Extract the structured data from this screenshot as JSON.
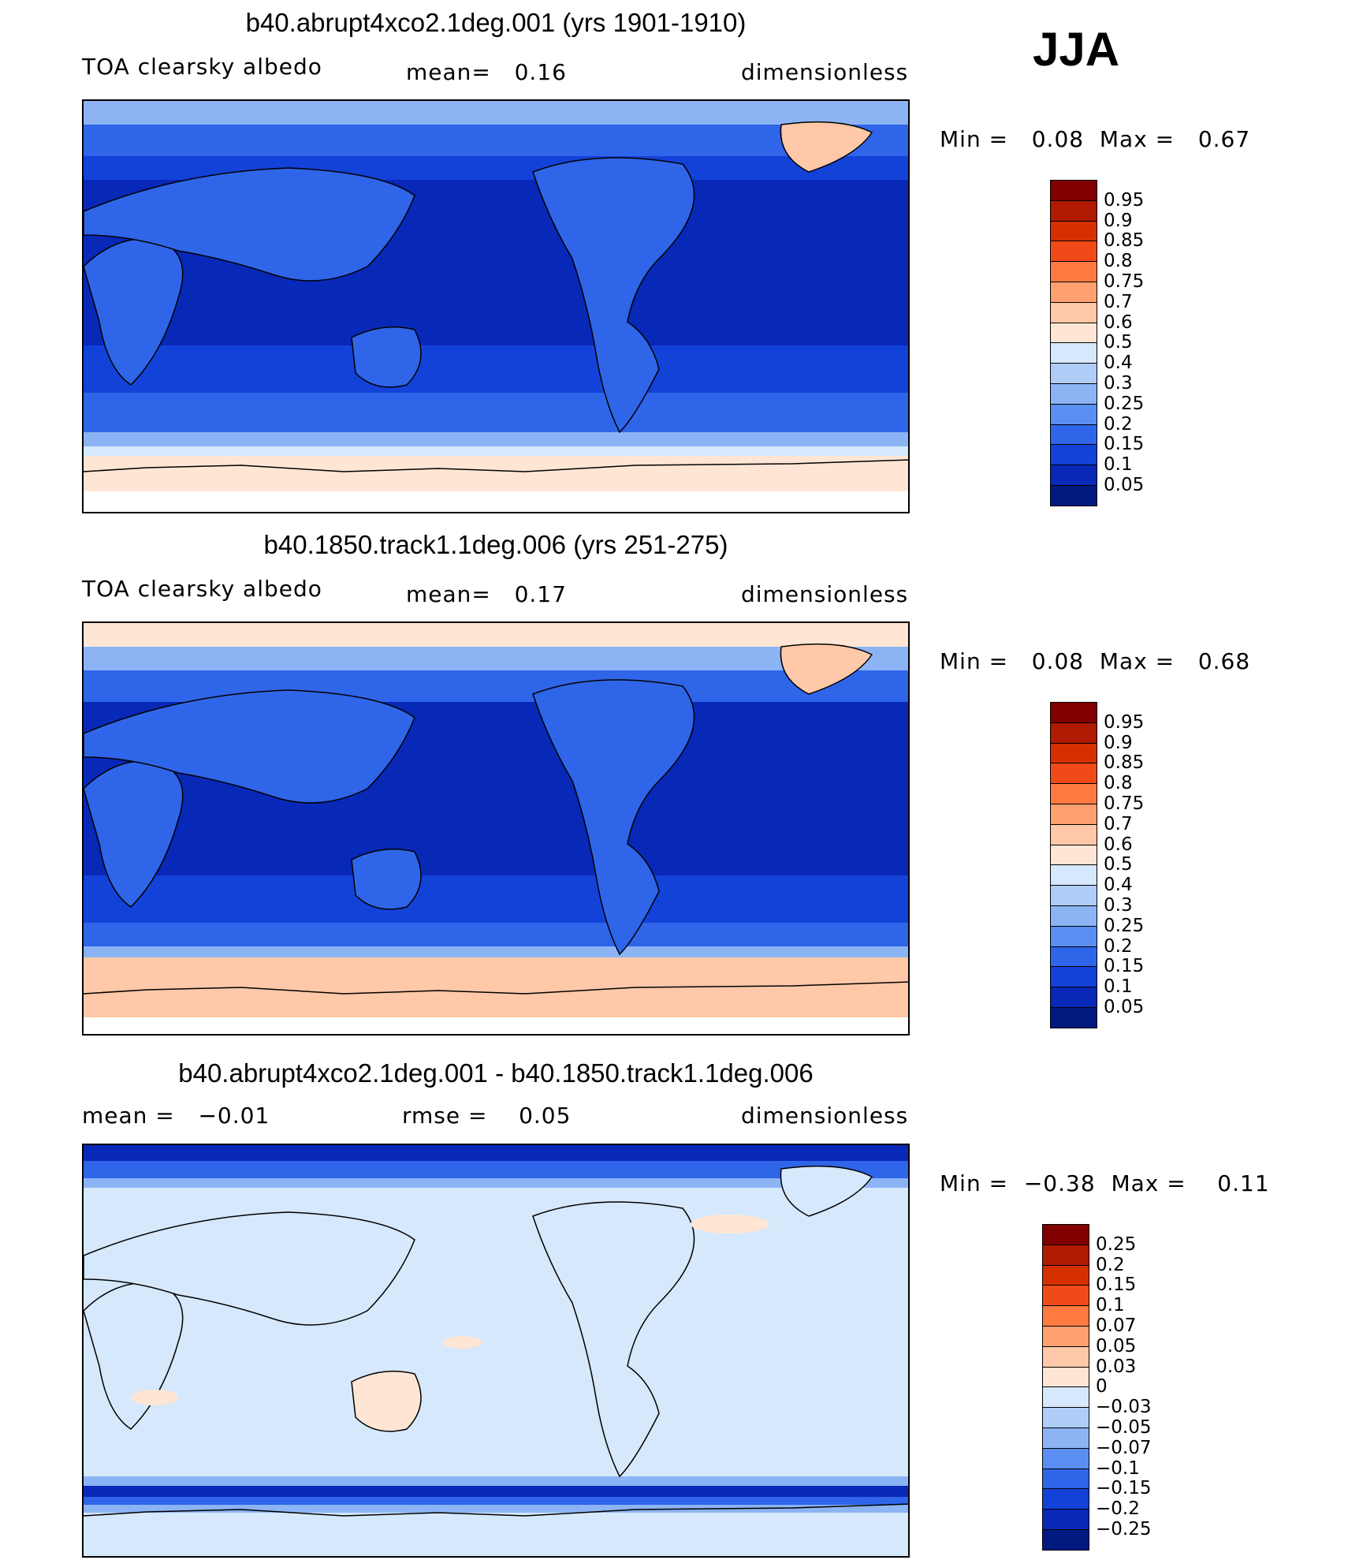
{
  "season": "JJA",
  "panels": [
    {
      "title": "b40.abrupt4xco2.1deg.001 (yrs 1901-1910)",
      "left_text": "TOA clearsky albedo",
      "mid_text": "mean=   0.16",
      "right_text": "dimensionless",
      "minmax": "Min =   0.08  Max =   0.67",
      "colorbar": {
        "labels": [
          "0.95",
          "0.9",
          "0.85",
          "0.8",
          "0.75",
          "0.7",
          "0.6",
          "0.5",
          "0.4",
          "0.3",
          "0.25",
          "0.2",
          "0.15",
          "0.1",
          "0.05"
        ],
        "colors": [
          "#800000",
          "#b01a00",
          "#d73000",
          "#f04a1a",
          "#ff7a40",
          "#ffa070",
          "#ffc8a8",
          "#ffe6d4",
          "#d6e8fb",
          "#b0cdf8",
          "#8cb4f5",
          "#5a8ef0",
          "#2f65e8",
          "#1242d8",
          "#0828b8",
          "#001a80"
        ]
      }
    },
    {
      "title": "b40.1850.track1.1deg.006 (yrs 251-275)",
      "left_text": "TOA clearsky albedo",
      "mid_text": "mean=   0.17",
      "right_text": "dimensionless",
      "minmax": "Min =   0.08  Max =   0.68",
      "colorbar": {
        "labels": [
          "0.95",
          "0.9",
          "0.85",
          "0.8",
          "0.75",
          "0.7",
          "0.6",
          "0.5",
          "0.4",
          "0.3",
          "0.25",
          "0.2",
          "0.15",
          "0.1",
          "0.05"
        ],
        "colors": [
          "#800000",
          "#b01a00",
          "#d73000",
          "#f04a1a",
          "#ff7a40",
          "#ffa070",
          "#ffc8a8",
          "#ffe6d4",
          "#d6e8fb",
          "#b0cdf8",
          "#8cb4f5",
          "#5a8ef0",
          "#2f65e8",
          "#1242d8",
          "#0828b8",
          "#001a80"
        ]
      }
    },
    {
      "title": "b40.abrupt4xco2.1deg.001 - b40.1850.track1.1deg.006",
      "left_text": "mean =   −0.01",
      "mid_text": "rmse =    0.05",
      "right_text": "dimensionless",
      "minmax": "Min =  −0.38  Max =    0.11",
      "colorbar": {
        "labels": [
          "0.25",
          "0.2",
          "0.15",
          "0.1",
          "0.07",
          "0.05",
          "0.03",
          "0",
          "−0.03",
          "−0.05",
          "−0.07",
          "−0.1",
          "−0.15",
          "−0.2",
          "−0.25"
        ],
        "colors": [
          "#800000",
          "#b01a00",
          "#d73000",
          "#f04a1a",
          "#ff7a40",
          "#ffa070",
          "#ffc8a8",
          "#ffe6d4",
          "#d6e8fb",
          "#b0cdf8",
          "#8cb4f5",
          "#5a8ef0",
          "#2f65e8",
          "#1242d8",
          "#0828b8",
          "#001a80"
        ]
      }
    }
  ]
}
